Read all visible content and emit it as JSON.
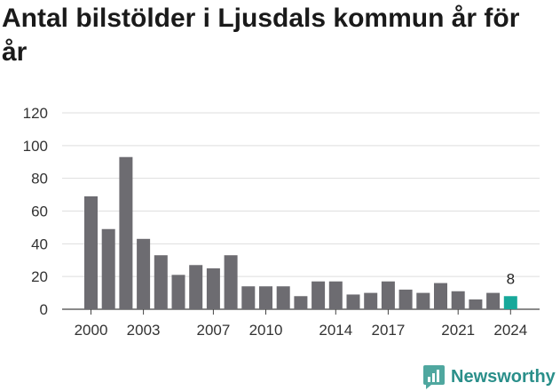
{
  "title": "Antal bilstölder i Ljusdals kommun år för år",
  "brand": {
    "name": "Newsworthy",
    "icon": "newsworthy-logo-icon",
    "color": "#2a8f8a"
  },
  "chart_data": {
    "type": "bar",
    "title": "Antal bilstölder i Ljusdals kommun år för år",
    "xlabel": "",
    "ylabel": "",
    "ylim": [
      0,
      120
    ],
    "yticks": [
      0,
      20,
      40,
      60,
      80,
      100,
      120
    ],
    "xticks": [
      "2000",
      "2003",
      "2007",
      "2010",
      "2014",
      "2017",
      "2021",
      "2024"
    ],
    "grid": true,
    "bar_color": "#6d6c71",
    "highlight_color": "#17a89a",
    "highlight_category": "2024",
    "annotations": [
      {
        "category": "2024",
        "text": "8"
      }
    ],
    "categories": [
      "2000",
      "2001",
      "2002",
      "2003",
      "2004",
      "2005",
      "2006",
      "2007",
      "2008",
      "2009",
      "2010",
      "2011",
      "2012",
      "2013",
      "2014",
      "2015",
      "2016",
      "2017",
      "2018",
      "2019",
      "2020",
      "2021",
      "2022",
      "2023",
      "2024"
    ],
    "values": [
      69,
      49,
      93,
      43,
      33,
      21,
      27,
      25,
      33,
      14,
      14,
      14,
      8,
      17,
      17,
      9,
      10,
      17,
      12,
      10,
      16,
      11,
      6,
      10,
      8
    ]
  }
}
